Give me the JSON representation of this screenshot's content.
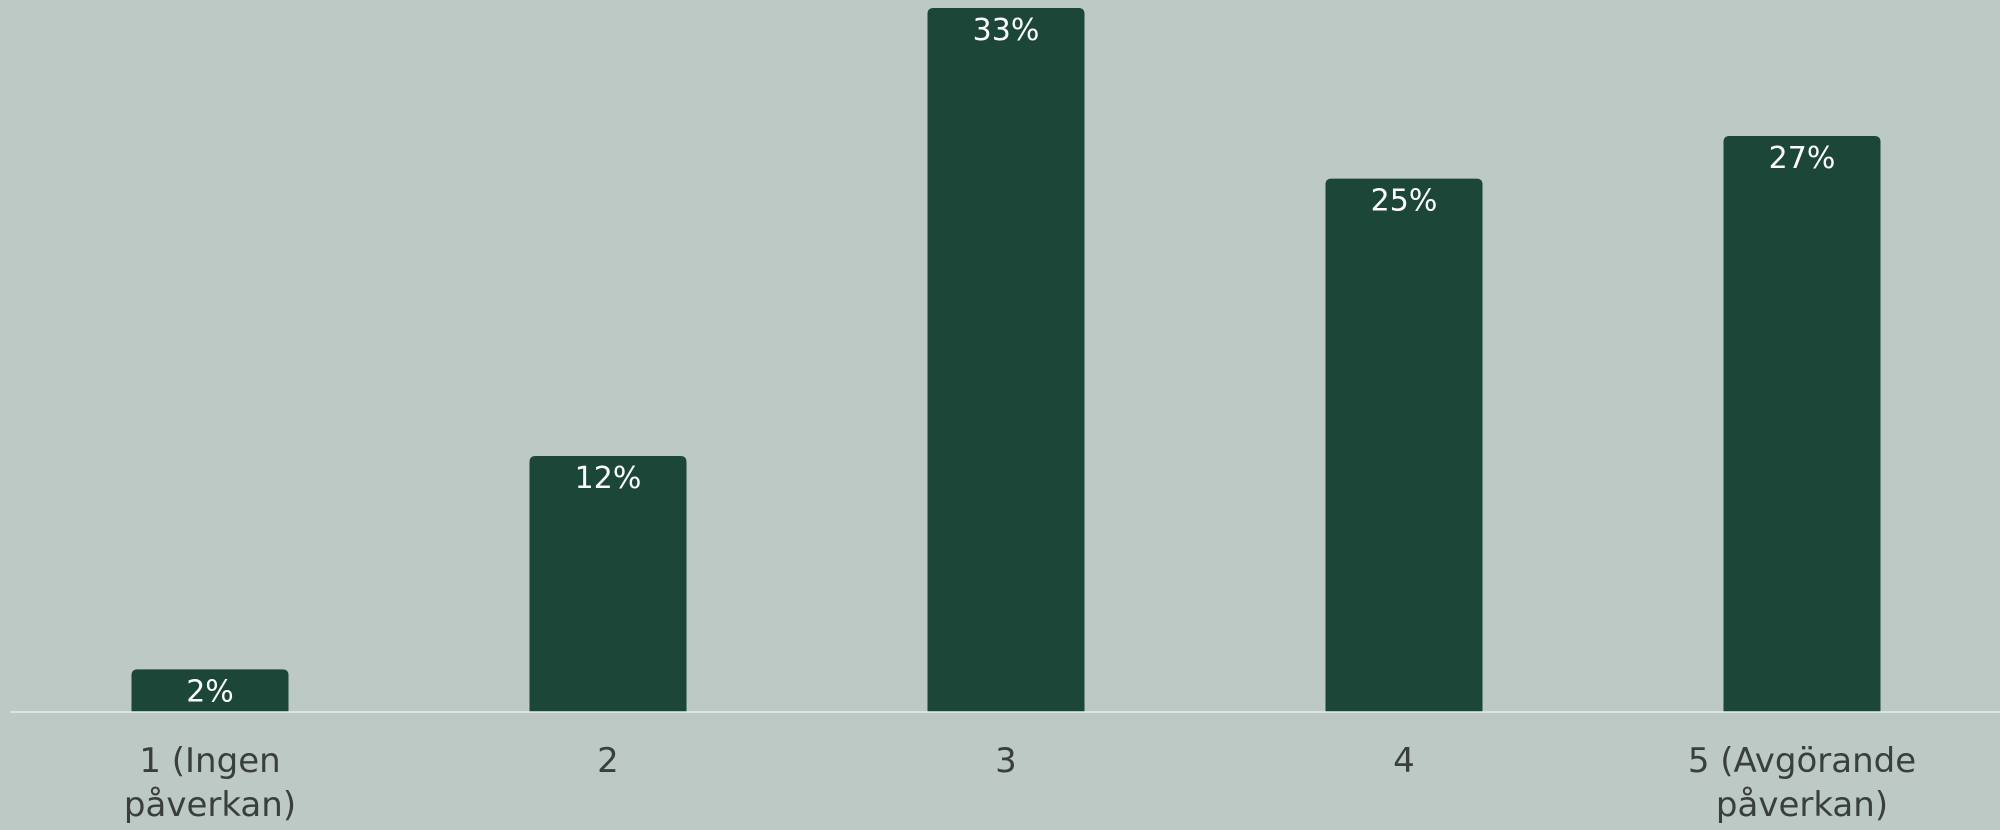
{
  "colors": {
    "background": "#bcc9c4",
    "bar": "#1b4638",
    "bar_label": "#ffffff",
    "axis_line": "#e6ecea",
    "category_label": "#3a3f3d"
  },
  "chart_data": {
    "type": "bar",
    "categories": [
      "1 (Ingen påverkan)",
      "2",
      "3",
      "4",
      "5 (Avgörande påverkan)"
    ],
    "values": [
      2,
      12,
      33,
      25,
      27
    ],
    "data_labels": [
      "2%",
      "12%",
      "33%",
      "25%",
      "27%"
    ],
    "value_unit": "%",
    "title": "",
    "xlabel": "",
    "ylabel": "",
    "ylim": [
      0,
      33
    ],
    "grid": false,
    "legend": "none"
  }
}
